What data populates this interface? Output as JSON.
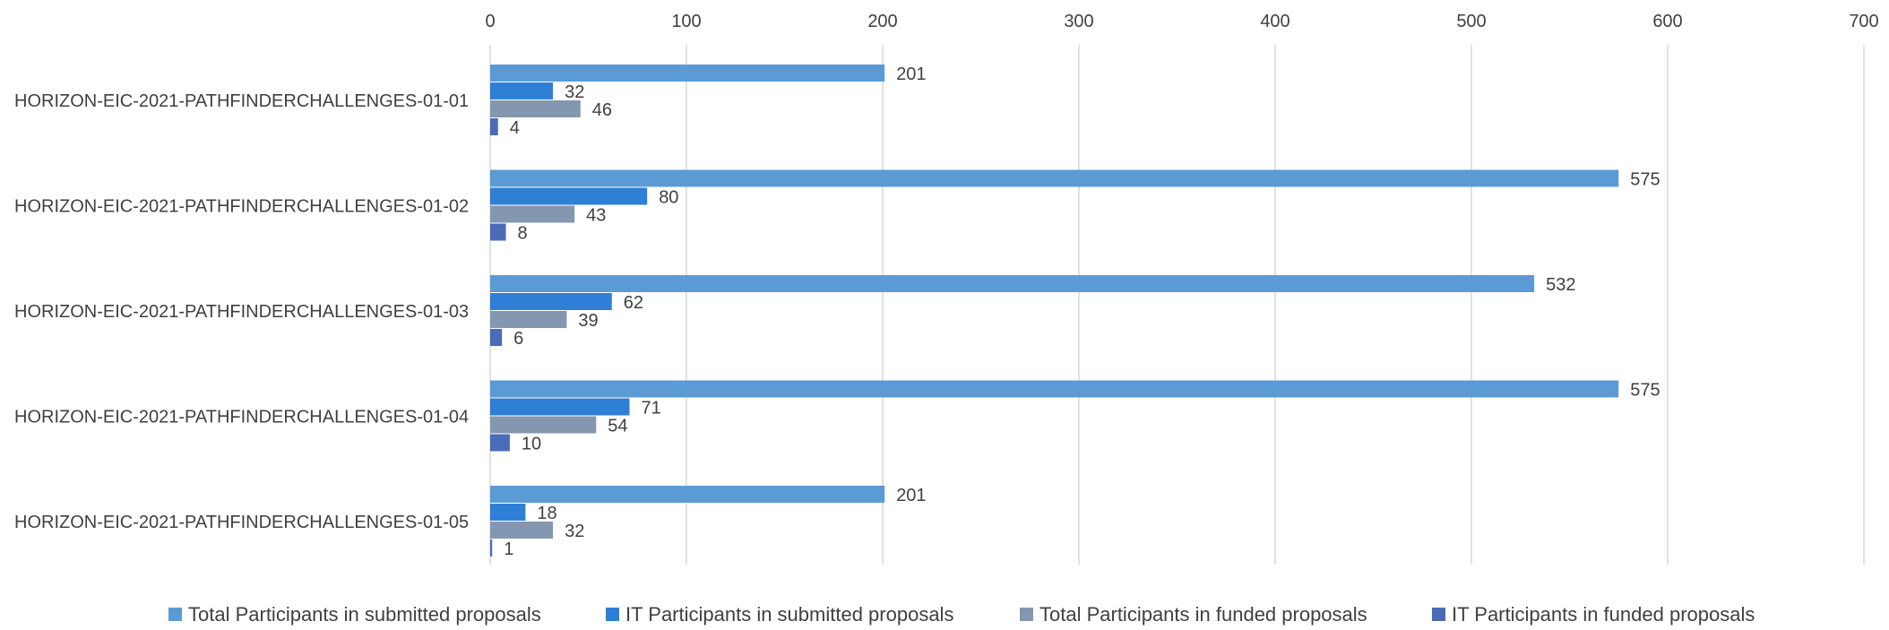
{
  "chart_data": {
    "type": "bar",
    "orientation": "horizontal",
    "categories": [
      "HORIZON-EIC-2021-PATHFINDERCHALLENGES-01-01",
      "HORIZON-EIC-2021-PATHFINDERCHALLENGES-01-02",
      "HORIZON-EIC-2021-PATHFINDERCHALLENGES-01-03",
      "HORIZON-EIC-2021-PATHFINDERCHALLENGES-01-04",
      "HORIZON-EIC-2021-PATHFINDERCHALLENGES-01-05"
    ],
    "series": [
      {
        "name": "Total Participants in submitted proposals",
        "color": "#5b9bd5",
        "values": [
          201,
          575,
          532,
          575,
          201
        ]
      },
      {
        "name": "IT Participants in submitted proposals",
        "color": "#2e7fd6",
        "values": [
          32,
          80,
          62,
          71,
          18
        ]
      },
      {
        "name": "Total Participants in funded proposals",
        "color": "#8497b0",
        "values": [
          46,
          43,
          39,
          54,
          32
        ]
      },
      {
        "name": "IT Participants in funded proposals",
        "color": "#4a6bb8",
        "values": [
          4,
          8,
          6,
          10,
          1
        ]
      }
    ],
    "xlim": [
      0,
      700
    ],
    "xticks": [
      0,
      100,
      200,
      300,
      400,
      500,
      600,
      700
    ],
    "xaxis_position": "top",
    "grid": true,
    "legend_position": "bottom",
    "title": "",
    "xlabel": "",
    "ylabel": ""
  }
}
